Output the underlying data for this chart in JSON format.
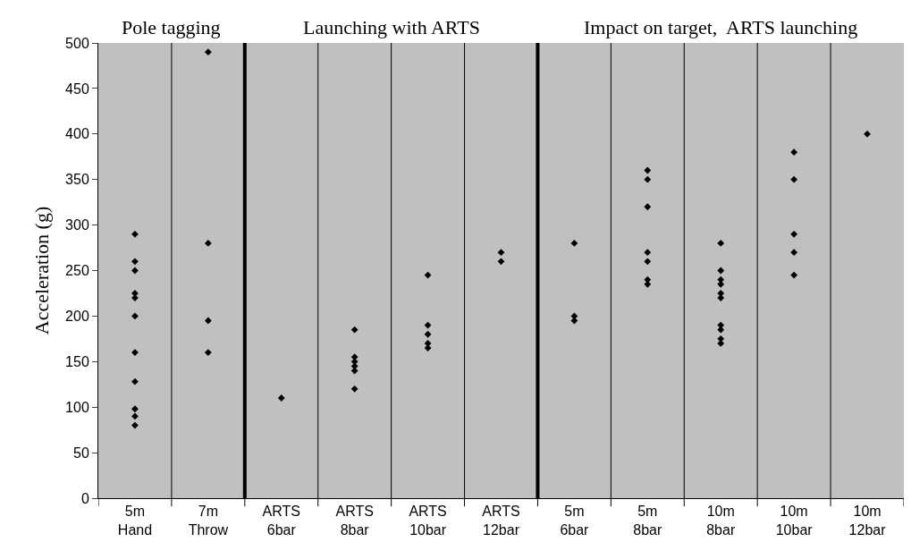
{
  "chart_data": {
    "type": "scatter",
    "ylabel": "Acceleration (g)",
    "categories": [
      "5m\nHand",
      "7m\nThrow",
      "ARTS\n6bar",
      "ARTS\n8bar",
      "ARTS\n10bar",
      "ARTS\n12bar",
      "5m\n6bar",
      "5m\n8bar",
      "10m\n8bar",
      "10m\n10bar",
      "10m\n12bar"
    ],
    "annotations": [
      "Pole tagging",
      "Launching with ARTS",
      "Impact on target,  ARTS launching"
    ],
    "series": [
      {
        "color": "#000000",
        "x": [
          "5m\nHand",
          "5m\nHand",
          "5m\nHand",
          "5m\nHand",
          "5m\nHand",
          "5m\nHand",
          "5m\nHand",
          "5m\nHand",
          "5m\nHand",
          "5m\nHand",
          "5m\nHand",
          "7m\nThrow",
          "7m\nThrow",
          "7m\nThrow",
          "7m\nThrow",
          "ARTS\n6bar",
          "ARTS\n8bar",
          "ARTS\n8bar",
          "ARTS\n8bar",
          "ARTS\n8bar",
          "ARTS\n8bar",
          "ARTS\n8bar",
          "ARTS\n10bar",
          "ARTS\n10bar",
          "ARTS\n10bar",
          "ARTS\n10bar",
          "ARTS\n10bar",
          "ARTS\n12bar",
          "ARTS\n12bar",
          "5m\n6bar",
          "5m\n6bar",
          "5m\n6bar",
          "5m\n8bar",
          "5m\n8bar",
          "5m\n8bar",
          "5m\n8bar",
          "5m\n8bar",
          "5m\n8bar",
          "5m\n8bar",
          "10m\n8bar",
          "10m\n8bar",
          "10m\n8bar",
          "10m\n8bar",
          "10m\n8bar",
          "10m\n8bar",
          "10m\n8bar",
          "10m\n8bar",
          "10m\n8bar",
          "10m\n8bar",
          "10m\n10bar",
          "10m\n10bar",
          "10m\n10bar",
          "10m\n10bar",
          "10m\n10bar",
          "10m\n12bar"
        ],
        "values": [
          290,
          260,
          250,
          225,
          220,
          200,
          160,
          128,
          98,
          90,
          80,
          490,
          280,
          195,
          160,
          110,
          185,
          155,
          150,
          145,
          140,
          120,
          245,
          190,
          180,
          170,
          165,
          270,
          260,
          280,
          200,
          195,
          360,
          350,
          320,
          270,
          260,
          240,
          235,
          280,
          250,
          240,
          235,
          225,
          220,
          190,
          185,
          175,
          170,
          380,
          350,
          290,
          270,
          245,
          400
        ]
      }
    ],
    "ylim": [
      0,
      500
    ],
    "yticks": [
      0,
      50,
      100,
      150,
      200,
      250,
      300,
      350,
      400,
      450,
      500
    ],
    "marker": "diamond",
    "grid": false
  }
}
